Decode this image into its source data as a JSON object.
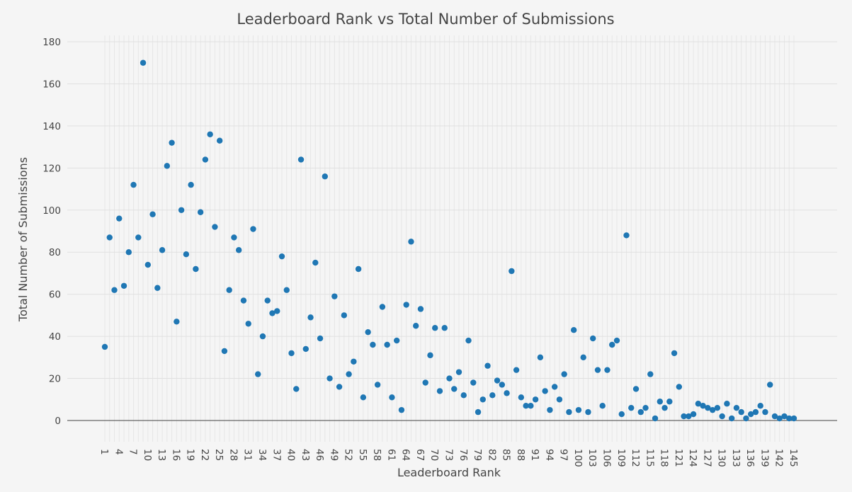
{
  "chart_data": {
    "type": "scatter",
    "title": "Leaderboard Rank vs Total Number of Submissions",
    "xlabel": "Leaderboard Rank",
    "ylabel": "Total Number of Submissions",
    "xlim": [
      1,
      146
    ],
    "ylim": [
      -10,
      180
    ],
    "y_ticks": [
      0,
      20,
      40,
      60,
      80,
      100,
      120,
      140,
      160,
      180
    ],
    "x_ticks": [
      1,
      4,
      7,
      10,
      13,
      16,
      19,
      22,
      25,
      28,
      31,
      34,
      37,
      40,
      43,
      46,
      49,
      52,
      55,
      58,
      61,
      64,
      67,
      70,
      73,
      76,
      79,
      82,
      85,
      88,
      91,
      94,
      97,
      100,
      103,
      106,
      109,
      112,
      115,
      118,
      121,
      124,
      127,
      130,
      133,
      136,
      139,
      142,
      145
    ],
    "grid": true,
    "marker_color": "#1f77b4",
    "x": [
      1,
      2,
      3,
      4,
      5,
      6,
      7,
      8,
      9,
      10,
      11,
      12,
      13,
      14,
      15,
      16,
      17,
      18,
      19,
      20,
      21,
      22,
      23,
      24,
      25,
      26,
      27,
      28,
      29,
      30,
      31,
      32,
      33,
      34,
      35,
      36,
      37,
      38,
      39,
      40,
      41,
      42,
      43,
      44,
      45,
      46,
      47,
      48,
      49,
      50,
      51,
      52,
      53,
      54,
      55,
      56,
      57,
      58,
      59,
      60,
      61,
      62,
      63,
      64,
      65,
      66,
      67,
      68,
      69,
      70,
      71,
      72,
      73,
      74,
      75,
      76,
      77,
      78,
      79,
      80,
      81,
      82,
      83,
      84,
      85,
      86,
      87,
      88,
      89,
      90,
      91,
      92,
      93,
      94,
      95,
      96,
      97,
      98,
      99,
      100,
      101,
      102,
      103,
      104,
      105,
      106,
      107,
      108,
      109,
      110,
      111,
      112,
      113,
      114,
      115,
      116,
      117,
      118,
      119,
      120,
      121,
      122,
      123,
      124,
      125,
      126,
      127,
      128,
      129,
      130,
      131,
      132,
      133,
      134,
      135,
      136,
      137,
      138,
      139,
      140,
      141,
      142,
      143,
      144,
      145
    ],
    "y": [
      35,
      87,
      62,
      96,
      64,
      80,
      112,
      87,
      170,
      74,
      98,
      63,
      81,
      121,
      132,
      47,
      100,
      79,
      112,
      72,
      99,
      124,
      136,
      92,
      133,
      33,
      62,
      87,
      81,
      57,
      46,
      91,
      22,
      40,
      57,
      51,
      52,
      78,
      62,
      32,
      15,
      124,
      34,
      49,
      75,
      39,
      116,
      20,
      59,
      16,
      50,
      22,
      28,
      72,
      11,
      42,
      36,
      17,
      54,
      36,
      11,
      38,
      5,
      55,
      85,
      45,
      53,
      18,
      31,
      44,
      14,
      44,
      20,
      15,
      23,
      12,
      38,
      18,
      4,
      10,
      26,
      12,
      19,
      17,
      13,
      71,
      24,
      11,
      7,
      7,
      10,
      30,
      14,
      5,
      16,
      10,
      22,
      4,
      43,
      5,
      30,
      4,
      39,
      24,
      7,
      24,
      36,
      38,
      3,
      88,
      6,
      15,
      4,
      6,
      22,
      1,
      9,
      6,
      9,
      32,
      16,
      2,
      2,
      3,
      8,
      7,
      6,
      5,
      6,
      2,
      8,
      1,
      6,
      4,
      1,
      3,
      4,
      7,
      4,
      17,
      2,
      1,
      2,
      1,
      1
    ]
  }
}
